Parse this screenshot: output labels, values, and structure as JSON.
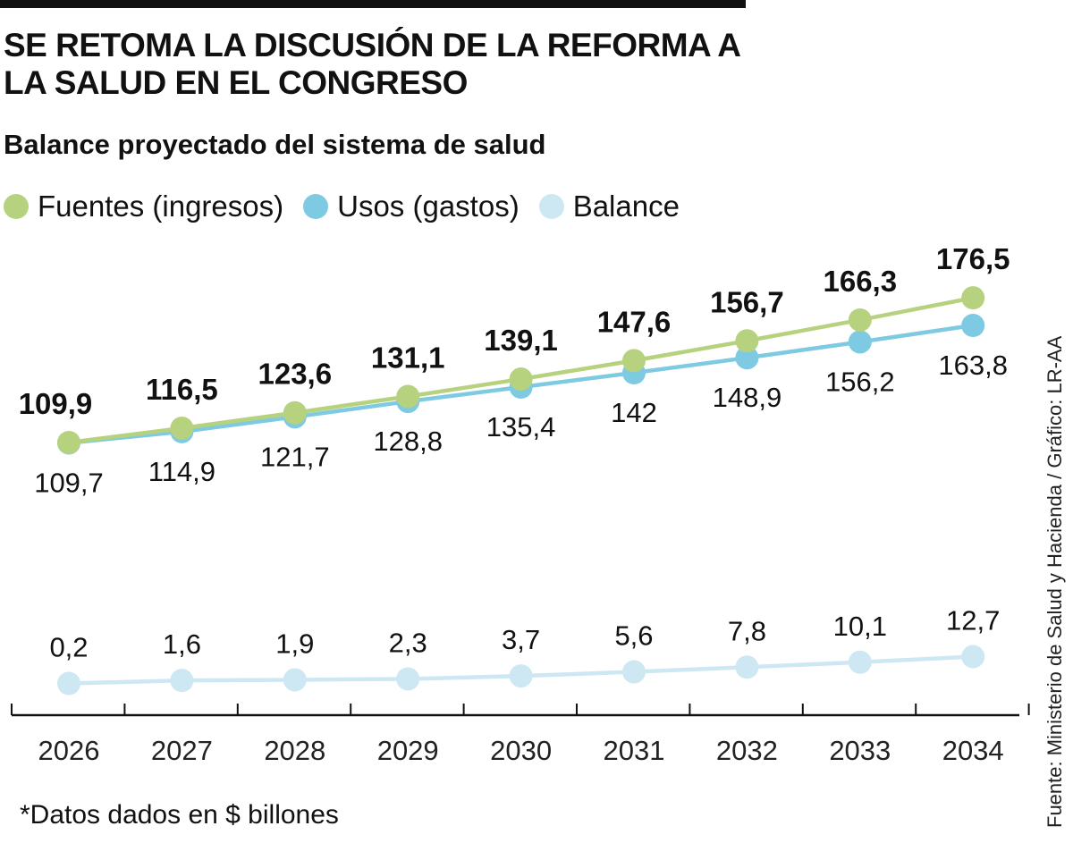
{
  "title": "SE RETOMA LA DISCUSIÓN DE LA REFORMA A LA SALUD EN EL CONGRESO",
  "subtitle": "Balance proyectado del sistema de salud",
  "note": "*Datos dados en $ billones",
  "source": "Fuente: Ministerio de Salud y Hacienda / Gráfico: LR-AA",
  "chart_data": {
    "type": "line",
    "categories": [
      "2026",
      "2027",
      "2028",
      "2029",
      "2030",
      "2031",
      "2032",
      "2033",
      "2034"
    ],
    "series": [
      {
        "name": "Fuentes (ingresos)",
        "color": "#b7d27e",
        "values": [
          109.9,
          116.5,
          123.6,
          131.1,
          139.1,
          147.6,
          156.7,
          166.3,
          176.5
        ],
        "labels": [
          "109,9",
          "116,5",
          "123,6",
          "131,1",
          "139,1",
          "147,6",
          "156,7",
          "166,3",
          "176,5"
        ]
      },
      {
        "name": "Usos (gastos)",
        "color": "#7ecae2",
        "values": [
          109.7,
          114.9,
          121.7,
          128.8,
          135.4,
          142,
          148.9,
          156.2,
          163.8
        ],
        "labels": [
          "109,7",
          "114,9",
          "121,7",
          "128,8",
          "135,4",
          "142",
          "148,9",
          "156,2",
          "163,8"
        ]
      },
      {
        "name": "Balance",
        "color": "#cde8f2",
        "values": [
          0.2,
          1.6,
          1.9,
          2.3,
          3.7,
          5.6,
          7.8,
          10.1,
          12.7
        ],
        "labels": [
          "0,2",
          "1,6",
          "1,9",
          "2,3",
          "3,7",
          "5,6",
          "7,8",
          "10,1",
          "12,7"
        ]
      }
    ],
    "legend": "top-left",
    "grid": false
  }
}
